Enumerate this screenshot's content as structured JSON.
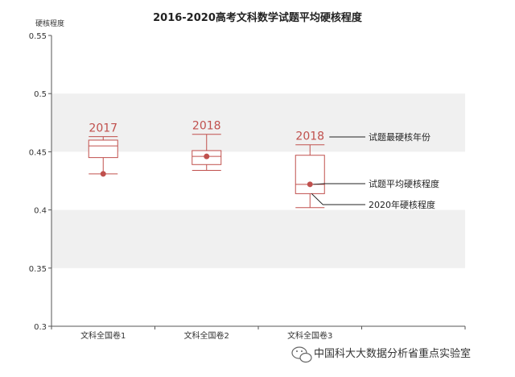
{
  "chart_data": {
    "type": "boxplot",
    "title": "2016-2020高考文科数学试题平均硬核程度",
    "ylabel": "硬核程度",
    "ylim": [
      0.3,
      0.55
    ],
    "yticks": [
      "0.3",
      "0.35",
      "0.4",
      "0.45",
      "0.5",
      "0.55"
    ],
    "categories": [
      "文科全国卷1",
      "文科全国卷2",
      "文科全国卷3"
    ],
    "boxes": [
      {
        "category": "文科全国卷1",
        "whisker_low": 0.431,
        "q1": 0.445,
        "median": 0.455,
        "q3": 0.46,
        "whisker_high": 0.463,
        "mean": 0.431,
        "hardest_year": "2017"
      },
      {
        "category": "文科全国卷2",
        "whisker_low": 0.434,
        "q1": 0.439,
        "median": 0.446,
        "q3": 0.451,
        "whisker_high": 0.465,
        "mean": 0.446,
        "hardest_year": "2018"
      },
      {
        "category": "文科全国卷3",
        "whisker_low": 0.402,
        "q1": 0.414,
        "median": 0.422,
        "q3": 0.447,
        "whisker_high": 0.456,
        "mean": 0.422,
        "hardest_year": "2018"
      }
    ],
    "annotations": {
      "hardest_year": "试题最硬核年份",
      "mean": "试题平均硬核程度",
      "year_2020": "2020年硬核程度"
    },
    "colors": {
      "box": "#c0504d",
      "band": "#f0f0f0",
      "axis": "#555555"
    },
    "grid": true
  },
  "footer": {
    "text": "中国科大大数据分析省重点实验室",
    "icon": "wechat-icon"
  }
}
